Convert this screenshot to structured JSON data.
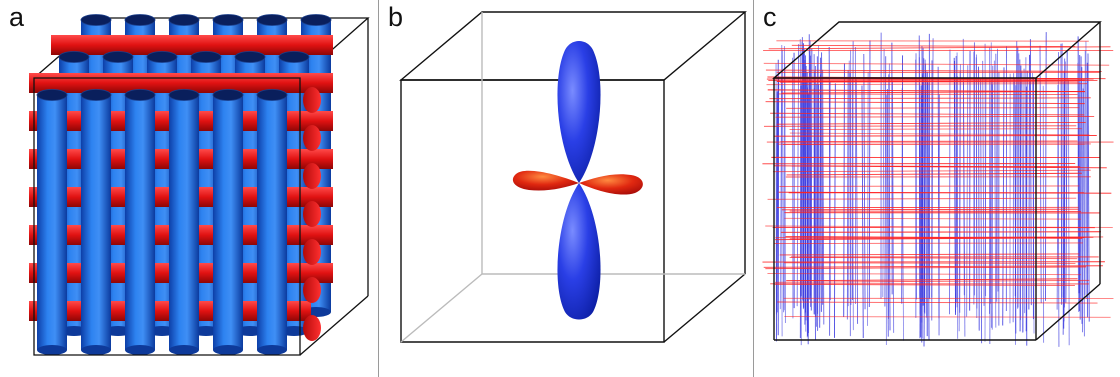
{
  "panels": [
    {
      "label": "a",
      "content": "cylinder-lattice"
    },
    {
      "label": "b",
      "content": "orientation-lobes"
    },
    {
      "label": "c",
      "content": "line-network"
    }
  ],
  "colors": {
    "blue": "#1f6fe8",
    "red": "#e01818",
    "frame": "#111111",
    "divider": "#9a9a9a",
    "line_blue": "#3a3ae0",
    "line_red": "#ff2020"
  }
}
